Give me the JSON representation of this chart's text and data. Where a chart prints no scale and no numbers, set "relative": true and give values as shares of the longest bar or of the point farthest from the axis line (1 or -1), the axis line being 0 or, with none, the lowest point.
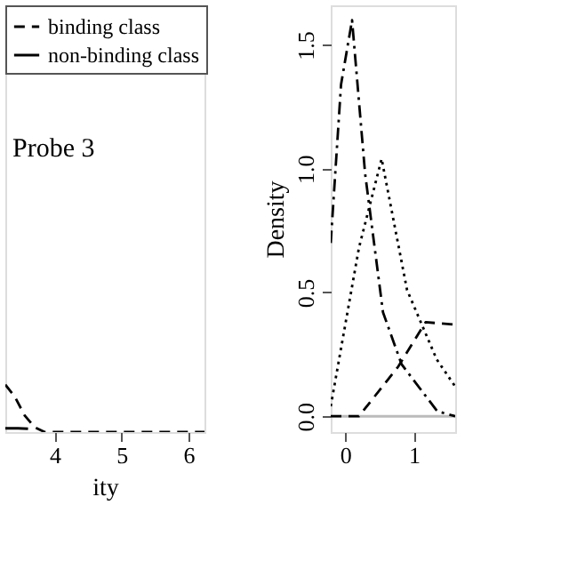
{
  "chart_data": [
    {
      "type": "line",
      "xlabel": "ity",
      "relative": true,
      "xlim": [
        3.26,
        6.24
      ],
      "xticks": [
        4,
        5,
        6
      ],
      "tick_labels": "x",
      "legend": "top-left",
      "annotations": [
        "Probe 3"
      ],
      "series": [
        {
          "name": "binding class",
          "color": "#000000",
          "line_style": "dashed",
          "x": [
            3.26,
            3.4,
            3.55,
            3.7,
            3.85,
            4.5,
            5,
            5.5,
            6.24
          ],
          "values": [
            1.0,
            0.75,
            0.35,
            0.1,
            0.0,
            0.0,
            0.0,
            0.0,
            0.0
          ]
        },
        {
          "name": "non-binding class",
          "color": "#000000",
          "line_style": "solid",
          "x": [
            3.26,
            3.45,
            3.6
          ],
          "values": [
            0.08,
            0.08,
            0.07
          ]
        }
      ]
    },
    {
      "type": "line",
      "ylabel": "Density",
      "xlim": [
        -0.21,
        1.6
      ],
      "xticks": [
        0,
        1
      ],
      "ylim": [
        -0.064,
        1.66
      ],
      "yticks": [
        {
          "value": 0,
          "label": "0.0"
        },
        {
          "value": 0.5,
          "label": "0.5"
        },
        {
          "value": 1,
          "label": "1.0"
        },
        {
          "value": 1.5,
          "label": "1.5"
        }
      ],
      "ref_lines": [
        {
          "axis": "y",
          "value": 0,
          "color": "#bbbbbb"
        }
      ],
      "series": [
        {
          "color": "#000000",
          "line_style": "dashdot",
          "x": [
            -0.21,
            -0.06,
            0.1,
            0.29,
            0.55,
            0.82,
            1.34,
            1.6
          ],
          "values": [
            0.7,
            1.34,
            1.6,
            0.98,
            0.42,
            0.21,
            0.02,
            0.0
          ]
        },
        {
          "color": "#000000",
          "line_style": "dotted",
          "x": [
            -0.21,
            0.2,
            0.53,
            0.9,
            1.33,
            1.6
          ],
          "values": [
            0.04,
            0.68,
            1.04,
            0.51,
            0.23,
            0.12
          ]
        },
        {
          "color": "#000000",
          "line_style": "dashed",
          "x": [
            -0.21,
            0.2,
            0.77,
            1.17,
            1.6
          ],
          "values": [
            0.0,
            0.0,
            0.2,
            0.38,
            0.37
          ]
        }
      ]
    }
  ]
}
